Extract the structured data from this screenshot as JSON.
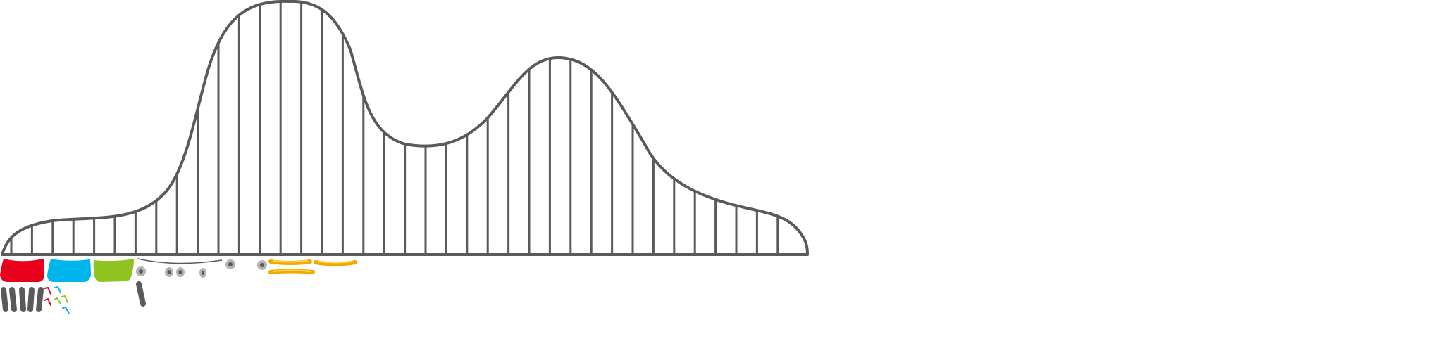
{
  "scene": {
    "background_color": "#ffffff",
    "track_color": "#5a5a5a",
    "cart_colors": [
      "#e8001c",
      "#00b4ec",
      "#8fc31f"
    ],
    "plank_color": "#f4a900",
    "plank_highlight": "#ffd84a",
    "wheel_color": "#b4b4b4",
    "wheel_hub": "#5a5a5a",
    "bar_color": "#5a5a5a"
  },
  "sprite_sheet": {
    "parts": [
      {
        "kind": "cart",
        "color": "red",
        "icon": "red-cart-icon"
      },
      {
        "kind": "cart",
        "color": "blue",
        "icon": "blue-cart-icon"
      },
      {
        "kind": "cart",
        "color": "green",
        "icon": "green-cart-icon"
      },
      {
        "kind": "wheel",
        "icon": "wheel-icon"
      },
      {
        "kind": "plank",
        "icon": "plank-icon"
      },
      {
        "kind": "post",
        "icon": "post-bar-icon"
      },
      {
        "kind": "seat-clip",
        "icon": "seat-clip-icon"
      }
    ]
  }
}
